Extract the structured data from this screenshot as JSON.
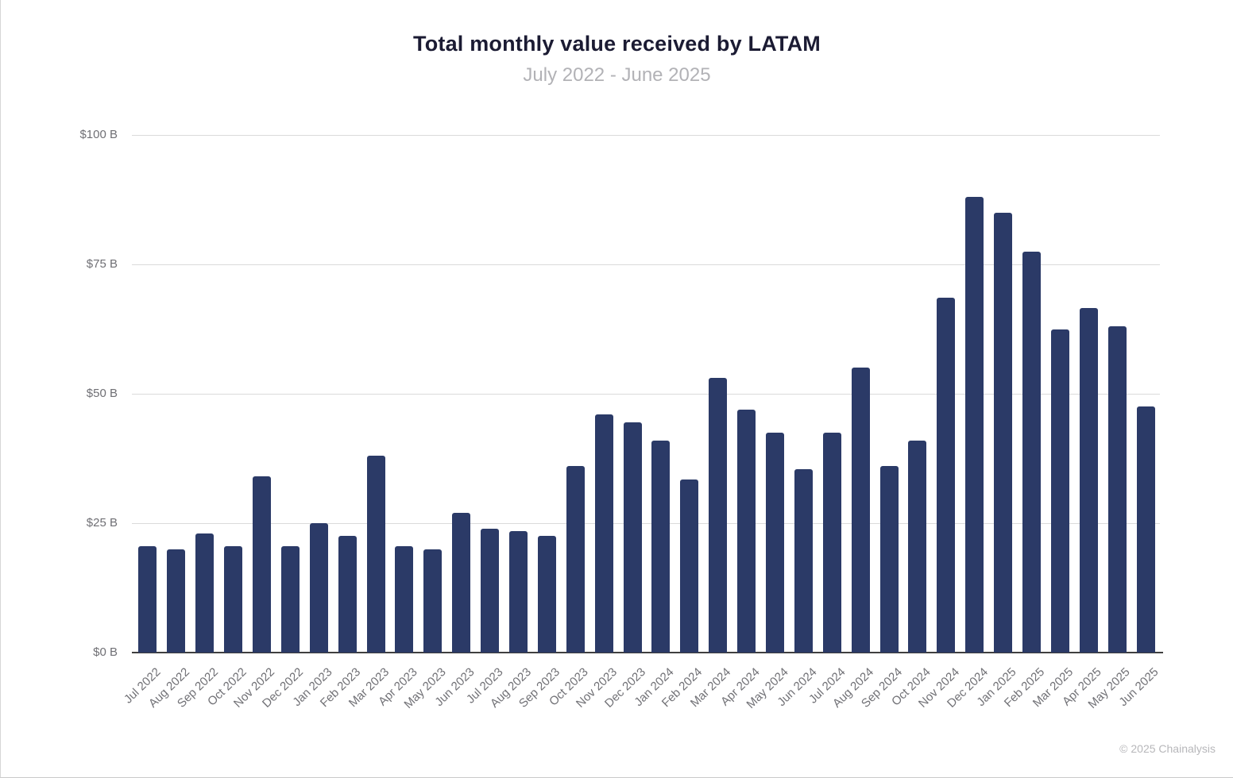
{
  "chart_data": {
    "type": "bar",
    "title": "Total monthly value received by LATAM",
    "subtitle": "July 2022 - June 2025",
    "xlabel": "",
    "ylabel": "",
    "unit": "$B",
    "ylim": [
      0,
      100
    ],
    "grid": true,
    "legend": false,
    "bar_color": "#2b3a67",
    "gridline_color": "#dadada",
    "axis_line_color": "#3f3f3f",
    "yticks": [
      {
        "value": 0,
        "label": "$0 B"
      },
      {
        "value": 25,
        "label": "$25 B"
      },
      {
        "value": 50,
        "label": "$50 B"
      },
      {
        "value": 75,
        "label": "$75 B"
      },
      {
        "value": 100,
        "label": "$100 B"
      }
    ],
    "categories": [
      "Jul 2022",
      "Aug 2022",
      "Sep 2022",
      "Oct 2022",
      "Nov 2022",
      "Dec 2022",
      "Jan 2023",
      "Feb 2023",
      "Mar 2023",
      "Apr 2023",
      "May 2023",
      "Jun 2023",
      "Jul 2023",
      "Aug 2023",
      "Sep 2023",
      "Oct 2023",
      "Nov 2023",
      "Dec 2023",
      "Jan 2024",
      "Feb 2024",
      "Mar 2024",
      "Apr 2024",
      "May 2024",
      "Jun 2024",
      "Jul 2024",
      "Aug 2024",
      "Sep 2024",
      "Oct 2024",
      "Nov 2024",
      "Dec 2024",
      "Jan 2025",
      "Feb 2025",
      "Mar 2025",
      "Apr 2025",
      "May 2025",
      "Jun 2025"
    ],
    "values": [
      20.5,
      20,
      23,
      20.5,
      34,
      20.5,
      25,
      22.5,
      38,
      20.5,
      20,
      27,
      24,
      23.5,
      22.5,
      36,
      46,
      44.5,
      41,
      33.5,
      53,
      47,
      42.5,
      35.5,
      42.5,
      55,
      36,
      41,
      68.5,
      88,
      85,
      77.5,
      62.5,
      66.5,
      63,
      47.5
    ]
  },
  "footer": {
    "copyright": "© 2025 Chainalysis"
  }
}
